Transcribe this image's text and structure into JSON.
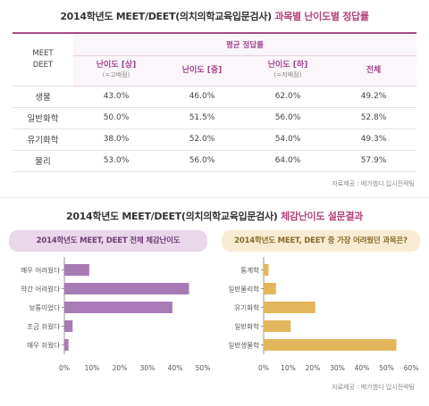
{
  "header1": {
    "title_main": "2014학년도 MEET/DEET(의치의학교육입문검사)",
    "title_accent": "과목별 난이도별 정답률"
  },
  "table": {
    "corner_line1": "MEET",
    "corner_line2": "DEET",
    "group_label": "평균 정답률",
    "columns": [
      {
        "label": "난이도 [상]",
        "sub": "(=고배점)"
      },
      {
        "label": "난이도 [중]",
        "sub": ""
      },
      {
        "label": "난이도 [하]",
        "sub": "(=저배점)"
      },
      {
        "label": "전체",
        "sub": ""
      }
    ],
    "rows": [
      {
        "subject": "생물",
        "values": [
          "43.0%",
          "46.0%",
          "62.0%",
          "49.2%"
        ]
      },
      {
        "subject": "일반화학",
        "values": [
          "50.0%",
          "51.5%",
          "56.0%",
          "52.8%"
        ]
      },
      {
        "subject": "유기화학",
        "values": [
          "38.0%",
          "52.0%",
          "54.0%",
          "49.3%"
        ]
      },
      {
        "subject": "물리",
        "values": [
          "53.0%",
          "56.0%",
          "64.0%",
          "57.9%"
        ]
      }
    ]
  },
  "source": "자료제공 : 메가엠디 입시전략팀",
  "header2": {
    "title_main": "2014학년도 MEET/DEET(의치의학교육입문검사)",
    "title_accent": "체감난이도 설문결과"
  },
  "colors": {
    "accent": "#b4427a",
    "purple_bar": "#a87bb6",
    "gold_bar": "#e3b65c"
  },
  "chart_data": [
    {
      "type": "bar",
      "orientation": "horizontal",
      "title": "2014학년도 MEET, DEET 전체 체감난이도",
      "categories": [
        "매우 어려웠다",
        "약간 어려웠다",
        "보통이었다",
        "조금 쉬웠다",
        "매우 쉬웠다"
      ],
      "values": [
        9,
        45,
        39,
        3,
        1.5
      ],
      "xlim": [
        0,
        50
      ],
      "xticks": [
        "0%",
        "10%",
        "20%",
        "30%",
        "40%",
        "50%"
      ],
      "grid": false
    },
    {
      "type": "bar",
      "orientation": "horizontal",
      "title": "2014학년도 MEET, DEET 중 가장 어려웠던 과목은?",
      "categories": [
        "통계학",
        "일반물리학",
        "유기화학",
        "일반화학",
        "일반생물학"
      ],
      "values": [
        2,
        5,
        21,
        11,
        54
      ],
      "xlim": [
        0,
        60
      ],
      "xticks": [
        "0%",
        "10%",
        "20%",
        "30%",
        "40%",
        "50%",
        "60%"
      ],
      "grid": false
    }
  ]
}
